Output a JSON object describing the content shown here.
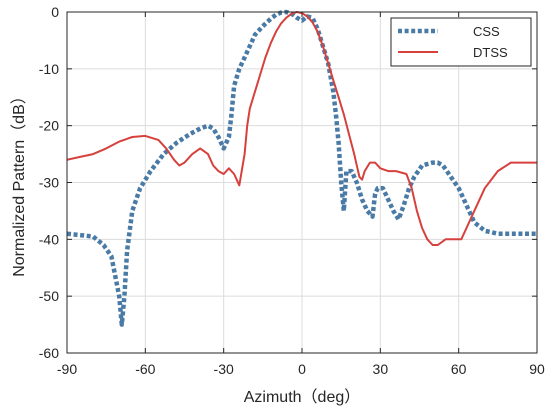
{
  "chart_data": {
    "type": "line",
    "title": "",
    "xlabel": "Azimuth（deg）",
    "ylabel": "Normalized Pattern（dB）",
    "xlim": [
      -90,
      90
    ],
    "ylim": [
      -60,
      0
    ],
    "xticks": [
      -90,
      -60,
      -30,
      0,
      30,
      60,
      90
    ],
    "yticks": [
      0,
      -10,
      -20,
      -30,
      -40,
      -50,
      -60
    ],
    "xtick_labels": [
      "-90",
      "-60",
      "-30",
      "0",
      "30",
      "60",
      "90"
    ],
    "ytick_labels": [
      "0",
      "-10",
      "-20",
      "-30",
      "-40",
      "-50",
      "-60"
    ],
    "grid": true,
    "legend_position": "top-right",
    "series": [
      {
        "name": "CSS",
        "color": "#4a7ba6",
        "style": "dotted",
        "x": [
          -90,
          -80,
          -76,
          -73,
          -70,
          -69,
          -68,
          -67,
          -65,
          -62,
          -58,
          -53,
          -48,
          -43,
          -39,
          -36,
          -34,
          -32,
          -30,
          -28,
          -27,
          -26,
          -24,
          -22,
          -20,
          -18,
          -15,
          -12,
          -10,
          -8,
          -6,
          -4,
          -2,
          0,
          2,
          4,
          6,
          8,
          10,
          12,
          13,
          14,
          15,
          16,
          17,
          19,
          21,
          23,
          25,
          27,
          28,
          29,
          31,
          33,
          35,
          37,
          39,
          41,
          43,
          46,
          50,
          52,
          54,
          57,
          60,
          63,
          66,
          70,
          75,
          80,
          85,
          90
        ],
        "y": [
          -39,
          -39.5,
          -41,
          -43,
          -50,
          -55,
          -50,
          -42,
          -35,
          -31,
          -28,
          -25,
          -23,
          -21.5,
          -20.5,
          -20,
          -20.5,
          -22,
          -24,
          -22,
          -18,
          -13,
          -10,
          -8,
          -6,
          -4,
          -2.5,
          -1.2,
          -0.5,
          -0.1,
          0,
          -0.3,
          -1,
          -1.5,
          -0.8,
          -1,
          -3,
          -6,
          -9,
          -14,
          -18,
          -23,
          -30,
          -35,
          -28,
          -28,
          -30,
          -33,
          -35,
          -36,
          -32,
          -31,
          -31,
          -33,
          -35,
          -36.5,
          -34,
          -31,
          -29,
          -27,
          -26.5,
          -26.5,
          -27,
          -29,
          -31,
          -34,
          -37,
          -38.5,
          -39,
          -39,
          -39,
          -39
        ]
      },
      {
        "name": "DTSS",
        "color": "#d6413d",
        "style": "solid",
        "x": [
          -90,
          -85,
          -80,
          -75,
          -70,
          -65,
          -60,
          -55,
          -52,
          -49,
          -47,
          -45,
          -42,
          -39,
          -36,
          -34,
          -32,
          -30,
          -28,
          -26,
          -24,
          -22,
          -21,
          -20,
          -18,
          -16,
          -14,
          -12,
          -10,
          -8,
          -6,
          -4,
          -2,
          0,
          2,
          4,
          6,
          8,
          10,
          12,
          14,
          16,
          18,
          20,
          22,
          23,
          24,
          26,
          28,
          30,
          33,
          36,
          40,
          42,
          44,
          46,
          48,
          50,
          52,
          55,
          58,
          61,
          63,
          66,
          70,
          75,
          80,
          85,
          90
        ],
        "y": [
          -26,
          -25.5,
          -25,
          -24,
          -22.8,
          -22,
          -21.8,
          -22.5,
          -24,
          -26,
          -27,
          -26.5,
          -25,
          -24,
          -25,
          -27,
          -28,
          -28.5,
          -27.5,
          -28.5,
          -30.5,
          -25,
          -20,
          -17,
          -14,
          -11,
          -8,
          -5.5,
          -3.5,
          -2,
          -1,
          -0.3,
          0,
          -0.2,
          -0.8,
          -1.8,
          -3.5,
          -6,
          -9,
          -12,
          -15,
          -18,
          -21.5,
          -25,
          -29,
          -29.5,
          -28,
          -26.5,
          -26.5,
          -27.5,
          -28,
          -28,
          -28.5,
          -31,
          -35,
          -38,
          -40,
          -41,
          -41,
          -40,
          -40,
          -40,
          -38,
          -35,
          -31,
          -28,
          -26.5,
          -26.5,
          -26.5
        ]
      }
    ]
  }
}
